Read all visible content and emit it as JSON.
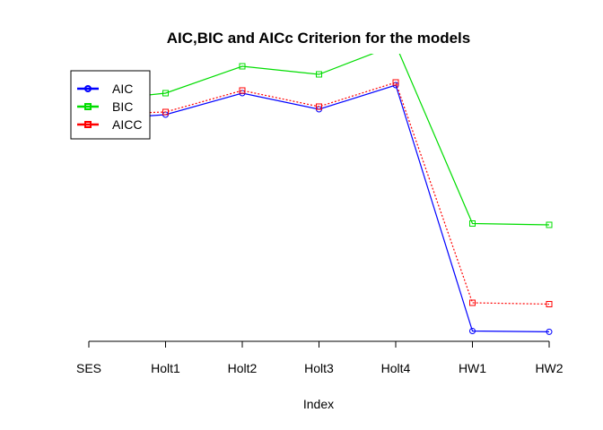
{
  "chart_data": {
    "type": "line",
    "title": "AIC,BIC and AICc Criterion for the models",
    "xlabel": "Index",
    "ylabel": "",
    "categories": [
      "SES",
      "Holt1",
      "Holt2",
      "Holt3",
      "Holt4",
      "HW1",
      "HW2"
    ],
    "ylim": [
      0,
      100
    ],
    "legend_position": "top-left",
    "series": [
      {
        "name": "AIC",
        "color": "#0000ff",
        "marker": "circle",
        "line_style": "solid",
        "values": [
          82,
          84,
          92,
          86,
          95,
          3.5,
          3.2
        ]
      },
      {
        "name": "BIC",
        "color": "#00dd00",
        "marker": "square",
        "line_style": "solid",
        "values": [
          89,
          92,
          102,
          99,
          110,
          43.5,
          43
        ]
      },
      {
        "name": "AICC",
        "color": "#ff0000",
        "marker": "square",
        "line_style": "dotted",
        "values": [
          84,
          85,
          93,
          87,
          96,
          14,
          13.5
        ]
      }
    ]
  }
}
